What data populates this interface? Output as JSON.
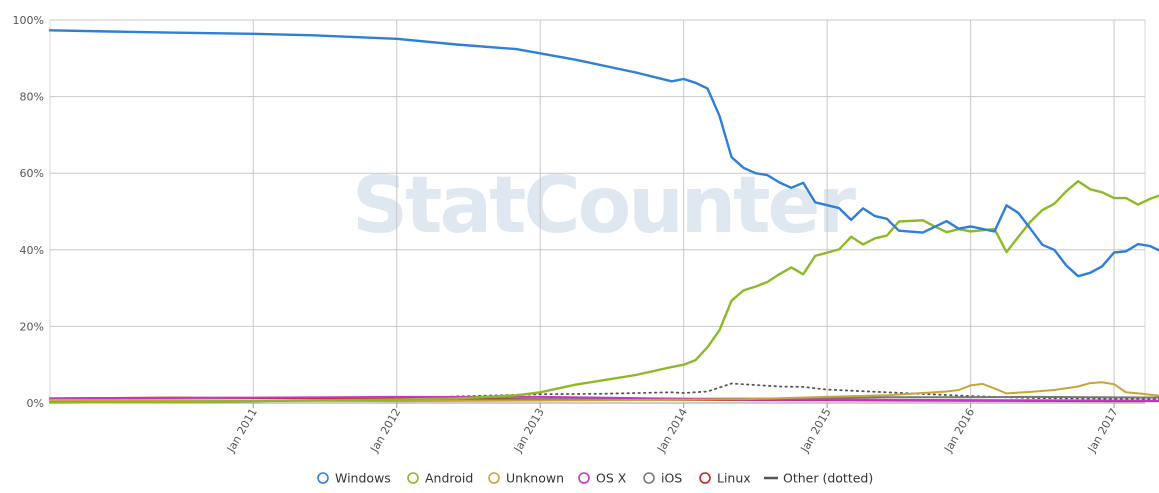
{
  "chart_data": {
    "type": "line",
    "watermark": "StatCounter",
    "y_axis": {
      "ylim": [
        0,
        100
      ],
      "ticks": [
        0,
        20,
        40,
        60,
        80,
        100
      ],
      "tick_labels": [
        "0%",
        "20%",
        "40%",
        "60%",
        "80%",
        "100%"
      ]
    },
    "x_axis": {
      "start": "2009-08",
      "end": "2017-03",
      "tick_dates": [
        "2011-01",
        "2012-01",
        "2013-01",
        "2014-01",
        "2015-01",
        "2016-01",
        "2017-01"
      ],
      "tick_labels": [
        "Jan 2011",
        "Jan 2012",
        "Jan 2013",
        "Jan 2014",
        "Jan 2015",
        "Jan 2016",
        "Jan 2017"
      ]
    },
    "grid": true,
    "legend_position": "bottom-center",
    "series": [
      {
        "name": "Windows",
        "color": "#2f7ed8",
        "style": "solid",
        "marker": "circle-open",
        "points": [
          [
            "2009-08",
            97.3
          ],
          [
            "2010-01",
            97.0
          ],
          [
            "2010-06",
            96.7
          ],
          [
            "2011-01",
            96.4
          ],
          [
            "2011-06",
            96.0
          ],
          [
            "2012-01",
            95.1
          ],
          [
            "2012-06",
            93.6
          ],
          [
            "2012-11",
            92.4
          ],
          [
            "2013-04",
            89.6
          ],
          [
            "2013-09",
            86.3
          ],
          [
            "2013-12",
            84.0
          ],
          [
            "2014-01",
            84.6
          ],
          [
            "2014-02",
            83.6
          ],
          [
            "2014-03",
            82.1
          ],
          [
            "2014-04",
            75.0
          ],
          [
            "2014-05",
            64.2
          ],
          [
            "2014-06",
            61.4
          ],
          [
            "2014-07",
            60.0
          ],
          [
            "2014-08",
            59.5
          ],
          [
            "2014-09",
            57.6
          ],
          [
            "2014-10",
            56.2
          ],
          [
            "2014-11",
            57.5
          ],
          [
            "2014-12",
            52.4
          ],
          [
            "2015-02",
            50.9
          ],
          [
            "2015-03",
            47.8
          ],
          [
            "2015-04",
            50.8
          ],
          [
            "2015-05",
            48.8
          ],
          [
            "2015-06",
            48.1
          ],
          [
            "2015-07",
            45.0
          ],
          [
            "2015-09",
            44.5
          ],
          [
            "2015-11",
            47.5
          ],
          [
            "2015-12",
            45.5
          ],
          [
            "2016-01",
            46.1
          ],
          [
            "2016-03",
            44.8
          ],
          [
            "2016-04",
            51.6
          ],
          [
            "2016-05",
            49.6
          ],
          [
            "2016-06",
            45.5
          ],
          [
            "2016-07",
            41.3
          ],
          [
            "2016-08",
            40.0
          ],
          [
            "2016-09",
            35.9
          ],
          [
            "2016-10",
            33.1
          ],
          [
            "2016-11",
            34.0
          ],
          [
            "2016-12",
            35.7
          ],
          [
            "2017-01",
            39.3
          ],
          [
            "2017-02",
            39.6
          ],
          [
            "2017-03",
            41.5
          ],
          [
            "2017-04",
            41.0
          ],
          [
            "2017-05",
            39.5
          ],
          [
            "2017-06",
            36.3
          ]
        ]
      },
      {
        "name": "Android",
        "color": "#8db928",
        "style": "solid",
        "marker": "circle-open",
        "points": [
          [
            "2009-08",
            0.1
          ],
          [
            "2010-01",
            0.2
          ],
          [
            "2010-06",
            0.3
          ],
          [
            "2011-01",
            0.5
          ],
          [
            "2011-06",
            0.7
          ],
          [
            "2012-01",
            0.9
          ],
          [
            "2012-06",
            1.2
          ],
          [
            "2012-11",
            2.0
          ],
          [
            "2013-01",
            2.8
          ],
          [
            "2013-04",
            4.8
          ],
          [
            "2013-09",
            7.3
          ],
          [
            "2013-12",
            9.4
          ],
          [
            "2014-01",
            10.0
          ],
          [
            "2014-02",
            11.2
          ],
          [
            "2014-03",
            14.6
          ],
          [
            "2014-04",
            19.0
          ],
          [
            "2014-05",
            26.7
          ],
          [
            "2014-06",
            29.4
          ],
          [
            "2014-07",
            30.4
          ],
          [
            "2014-08",
            31.6
          ],
          [
            "2014-09",
            33.6
          ],
          [
            "2014-10",
            35.4
          ],
          [
            "2014-11",
            33.6
          ],
          [
            "2014-12",
            38.4
          ],
          [
            "2015-02",
            40.1
          ],
          [
            "2015-03",
            43.4
          ],
          [
            "2015-04",
            41.4
          ],
          [
            "2015-05",
            43.0
          ],
          [
            "2015-06",
            43.7
          ],
          [
            "2015-07",
            47.4
          ],
          [
            "2015-09",
            47.7
          ],
          [
            "2015-10",
            46.1
          ],
          [
            "2015-11",
            44.6
          ],
          [
            "2015-12",
            45.4
          ],
          [
            "2016-01",
            44.8
          ],
          [
            "2016-03",
            45.4
          ],
          [
            "2016-04",
            39.4
          ],
          [
            "2016-05",
            43.4
          ],
          [
            "2016-06",
            47.3
          ],
          [
            "2016-07",
            50.4
          ],
          [
            "2016-08",
            52.0
          ],
          [
            "2016-09",
            55.3
          ],
          [
            "2016-10",
            57.9
          ],
          [
            "2016-11",
            55.8
          ],
          [
            "2016-12",
            55.0
          ],
          [
            "2017-01",
            53.5
          ],
          [
            "2017-02",
            53.5
          ],
          [
            "2017-03",
            51.8
          ],
          [
            "2017-04",
            53.3
          ],
          [
            "2017-05",
            54.4
          ],
          [
            "2017-06",
            58.3
          ]
        ]
      },
      {
        "name": "Unknown",
        "color": "#c8a43a",
        "style": "solid",
        "marker": "circle-open",
        "points": [
          [
            "2009-08",
            0.8
          ],
          [
            "2010-06",
            0.7
          ],
          [
            "2012-01",
            0.5
          ],
          [
            "2013-06",
            0.7
          ],
          [
            "2014-06",
            1.0
          ],
          [
            "2015-01",
            1.6
          ],
          [
            "2015-06",
            2.0
          ],
          [
            "2015-09",
            2.6
          ],
          [
            "2015-11",
            3.0
          ],
          [
            "2015-12",
            3.4
          ],
          [
            "2016-01",
            4.6
          ],
          [
            "2016-02",
            5.0
          ],
          [
            "2016-03",
            3.8
          ],
          [
            "2016-04",
            2.5
          ],
          [
            "2016-06",
            2.9
          ],
          [
            "2016-08",
            3.4
          ],
          [
            "2016-10",
            4.3
          ],
          [
            "2016-11",
            5.2
          ],
          [
            "2016-12",
            5.4
          ],
          [
            "2017-01",
            4.9
          ],
          [
            "2017-02",
            2.8
          ],
          [
            "2017-03",
            2.5
          ],
          [
            "2017-06",
            1.5
          ]
        ]
      },
      {
        "name": "OS X",
        "color": "#cc33cc",
        "style": "solid",
        "marker": "circle-open",
        "points": [
          [
            "2009-08",
            1.2
          ],
          [
            "2011-01",
            1.4
          ],
          [
            "2012-01",
            1.6
          ],
          [
            "2013-01",
            1.6
          ],
          [
            "2013-06",
            1.4
          ],
          [
            "2014-01",
            1.1
          ],
          [
            "2014-06",
            0.9
          ],
          [
            "2015-06",
            0.8
          ],
          [
            "2016-06",
            0.7
          ],
          [
            "2017-06",
            0.6
          ]
        ]
      },
      {
        "name": "iOS",
        "color": "#777777",
        "style": "solid",
        "marker": "circle-open",
        "points": [
          [
            "2009-08",
            0.3
          ],
          [
            "2011-01",
            0.5
          ],
          [
            "2012-01",
            0.8
          ],
          [
            "2013-01",
            1.0
          ],
          [
            "2014-01",
            1.1
          ],
          [
            "2015-01",
            1.2
          ],
          [
            "2015-06",
            1.5
          ],
          [
            "2016-01",
            1.5
          ],
          [
            "2016-06",
            1.6
          ],
          [
            "2017-06",
            1.4
          ]
        ]
      },
      {
        "name": "Linux",
        "color": "#cc2222",
        "style": "solid",
        "marker": "circle-open",
        "points": [
          [
            "2009-08",
            1.2
          ],
          [
            "2010-06",
            1.4
          ],
          [
            "2011-01",
            1.3
          ],
          [
            "2012-01",
            1.2
          ],
          [
            "2013-01",
            1.0
          ],
          [
            "2014-01",
            0.8
          ],
          [
            "2015-01",
            0.7
          ],
          [
            "2016-01",
            0.6
          ],
          [
            "2017-01",
            0.5
          ],
          [
            "2017-06",
            0.5
          ]
        ]
      },
      {
        "name": "Other (dotted)",
        "color": "#555555",
        "style": "dotted",
        "marker": "dash",
        "points": [
          [
            "2009-08",
            0.2
          ],
          [
            "2011-01",
            0.5
          ],
          [
            "2012-01",
            1.0
          ],
          [
            "2012-06",
            1.7
          ],
          [
            "2013-01",
            2.3
          ],
          [
            "2013-06",
            2.4
          ],
          [
            "2013-12",
            2.8
          ],
          [
            "2014-01",
            2.6
          ],
          [
            "2014-03",
            3.0
          ],
          [
            "2014-05",
            5.1
          ],
          [
            "2014-07",
            4.7
          ],
          [
            "2014-09",
            4.3
          ],
          [
            "2014-11",
            4.2
          ],
          [
            "2015-01",
            3.5
          ],
          [
            "2015-06",
            2.8
          ],
          [
            "2016-01",
            1.8
          ],
          [
            "2016-06",
            1.3
          ],
          [
            "2017-06",
            1.0
          ]
        ]
      }
    ]
  }
}
